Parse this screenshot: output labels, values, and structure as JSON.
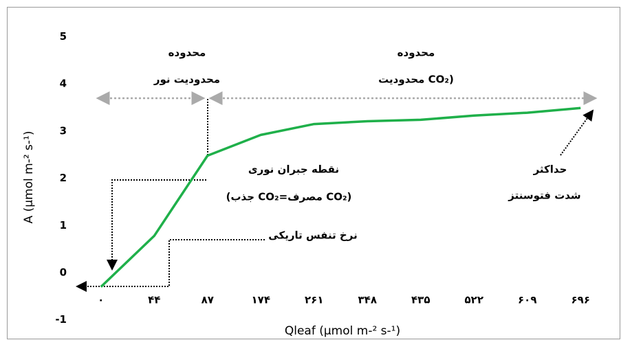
{
  "chart_data": {
    "type": "line",
    "x_label": "Qleaf (µmol m-² s-¹)",
    "y_label": "A (µmol m-² s-¹)",
    "categories": [
      "۰",
      "۴۴",
      "۸۷",
      "۱۷۴",
      "۲۶۱",
      "۳۴۸",
      "۴۳۵",
      "۵۲۲",
      "۶۰۹",
      "۶۹۶"
    ],
    "series": [
      {
        "color": "#1fb04a",
        "values": [
          -0.3,
          0.78,
          2.48,
          2.92,
          3.15,
          3.21,
          3.24,
          3.33,
          3.39,
          3.49
        ]
      }
    ],
    "ylim": [
      -1,
      5
    ],
    "yticks": [
      -1,
      0,
      1,
      2,
      3,
      4,
      5
    ],
    "annotations": {
      "light_range_1": "محدوده",
      "light_range_2": "محدودیت نور",
      "co2_range_1": "محدوده",
      "co2_range_2": "محدودیت CO₂)",
      "compensation_1": "نقطه جبران نوری",
      "compensation_2": "(جذب CO₂=مصرف CO₂)",
      "dark_respiration": "نرخ تنفس تاریکی",
      "max_1": "حداکثر",
      "max_2": "شدت فتوسنتز"
    }
  }
}
